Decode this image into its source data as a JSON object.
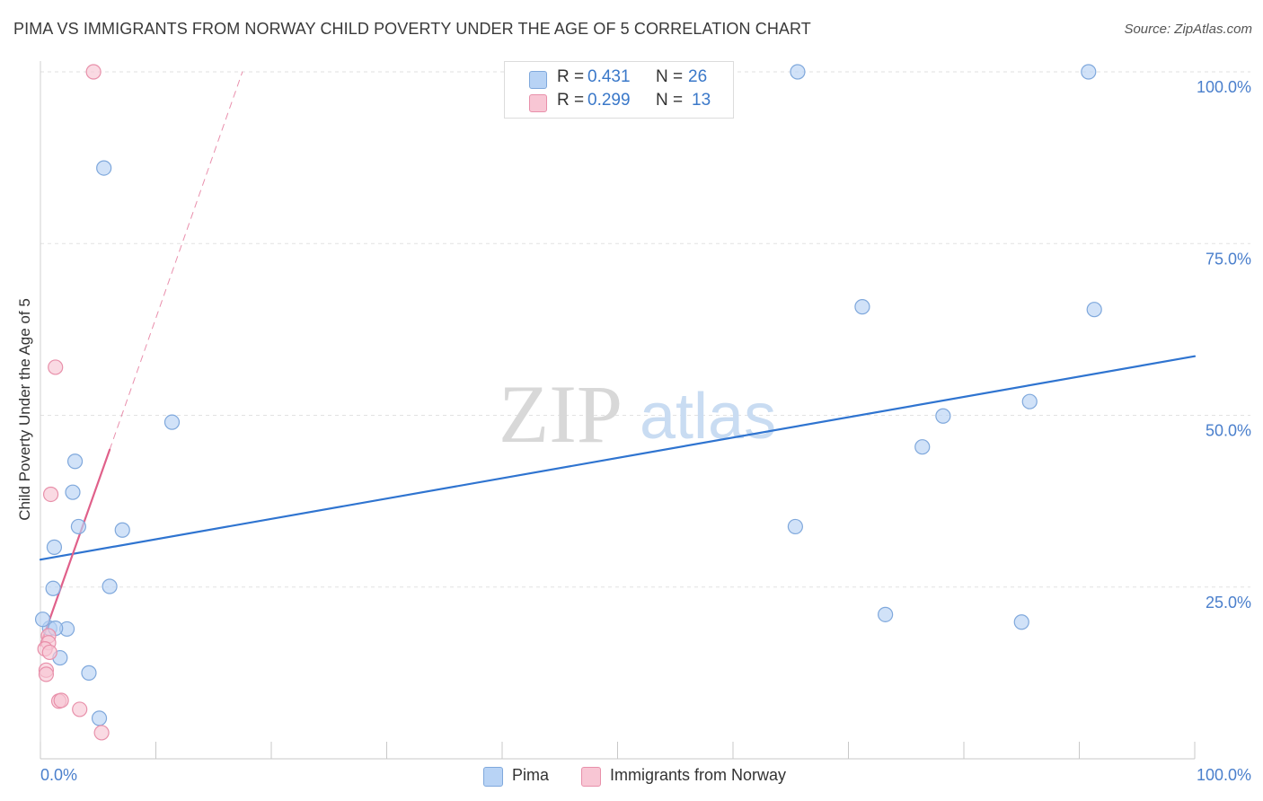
{
  "header": {
    "title": "PIMA VS IMMIGRANTS FROM NORWAY CHILD POVERTY UNDER THE AGE OF 5 CORRELATION CHART",
    "source": "Source: ZipAtlas.com"
  },
  "watermark": {
    "zip": "ZIP",
    "atlas": "atlas"
  },
  "legend": {
    "rows": [
      {
        "r_label": "R =",
        "r_value": "0.431",
        "n_label": "N =",
        "n_value": "26"
      },
      {
        "r_label": "R =",
        "r_value": "0.299",
        "n_label": "N =",
        "n_value": "13"
      }
    ]
  },
  "bottom_legend": {
    "pima": "Pima",
    "norway": "Immigrants from Norway"
  },
  "colors": {
    "pima_fill": "#b8d3f5",
    "pima_stroke": "#7fa8dc",
    "pima_line": "#2f74d0",
    "norway_fill": "#f8c6d4",
    "norway_stroke": "#e890aa",
    "norway_line": "#e0608a",
    "tick_label": "#4a7fcc",
    "grid": "#e2e2e2"
  },
  "chart_data": {
    "type": "scatter",
    "title": "PIMA VS IMMIGRANTS FROM NORWAY CHILD POVERTY UNDER THE AGE OF 5 CORRELATION CHART",
    "xlabel": "",
    "ylabel": "Child Poverty Under the Age of 5",
    "xlim": [
      0,
      100
    ],
    "ylim": [
      0,
      100
    ],
    "x_tick_labels": [
      "0.0%",
      "100.0%"
    ],
    "y_ticks": [
      25,
      50,
      75,
      100
    ],
    "y_tick_labels": [
      "25.0%",
      "50.0%",
      "75.0%",
      "100.0%"
    ],
    "grid": true,
    "legend_position": "top-center",
    "series": [
      {
        "name": "Pima",
        "x": [
          5.5,
          1.2,
          3.0,
          2.8,
          1.1,
          3.3,
          0.8,
          6.0,
          0.2,
          2.3,
          1.7,
          4.2,
          1.3,
          5.1,
          7.1,
          11.4,
          65.6,
          90.8,
          71.2,
          78.2,
          85.7,
          76.4,
          91.3,
          65.4,
          73.2,
          85.0
        ],
        "y": [
          86.0,
          30.8,
          43.3,
          38.8,
          24.8,
          33.8,
          19.0,
          25.1,
          20.3,
          18.9,
          14.7,
          12.5,
          19.0,
          5.9,
          33.3,
          49.0,
          100.0,
          100.0,
          65.8,
          49.9,
          52.0,
          45.4,
          65.4,
          33.8,
          21.0,
          19.9
        ]
      },
      {
        "name": "Immigrants from Norway",
        "x": [
          4.6,
          1.3,
          0.9,
          0.7,
          0.7,
          0.4,
          0.5,
          0.5,
          1.6,
          1.8,
          3.4,
          5.3,
          0.8
        ],
        "y": [
          100.0,
          57.0,
          38.5,
          17.9,
          16.9,
          16.0,
          12.9,
          12.3,
          8.4,
          8.5,
          7.2,
          3.8,
          15.5
        ]
      }
    ],
    "trend_lines": [
      {
        "series": "Pima",
        "x": [
          0,
          100
        ],
        "y": [
          29.0,
          58.6
        ],
        "style": "solid"
      },
      {
        "series": "Immigrants from Norway",
        "x": [
          0,
          6.0
        ],
        "y": [
          16.5,
          45.0
        ],
        "style": "solid"
      },
      {
        "series": "Immigrants from Norway",
        "x": [
          6.0,
          17.5
        ],
        "y": [
          45.0,
          100.0
        ],
        "style": "dashed"
      }
    ]
  }
}
